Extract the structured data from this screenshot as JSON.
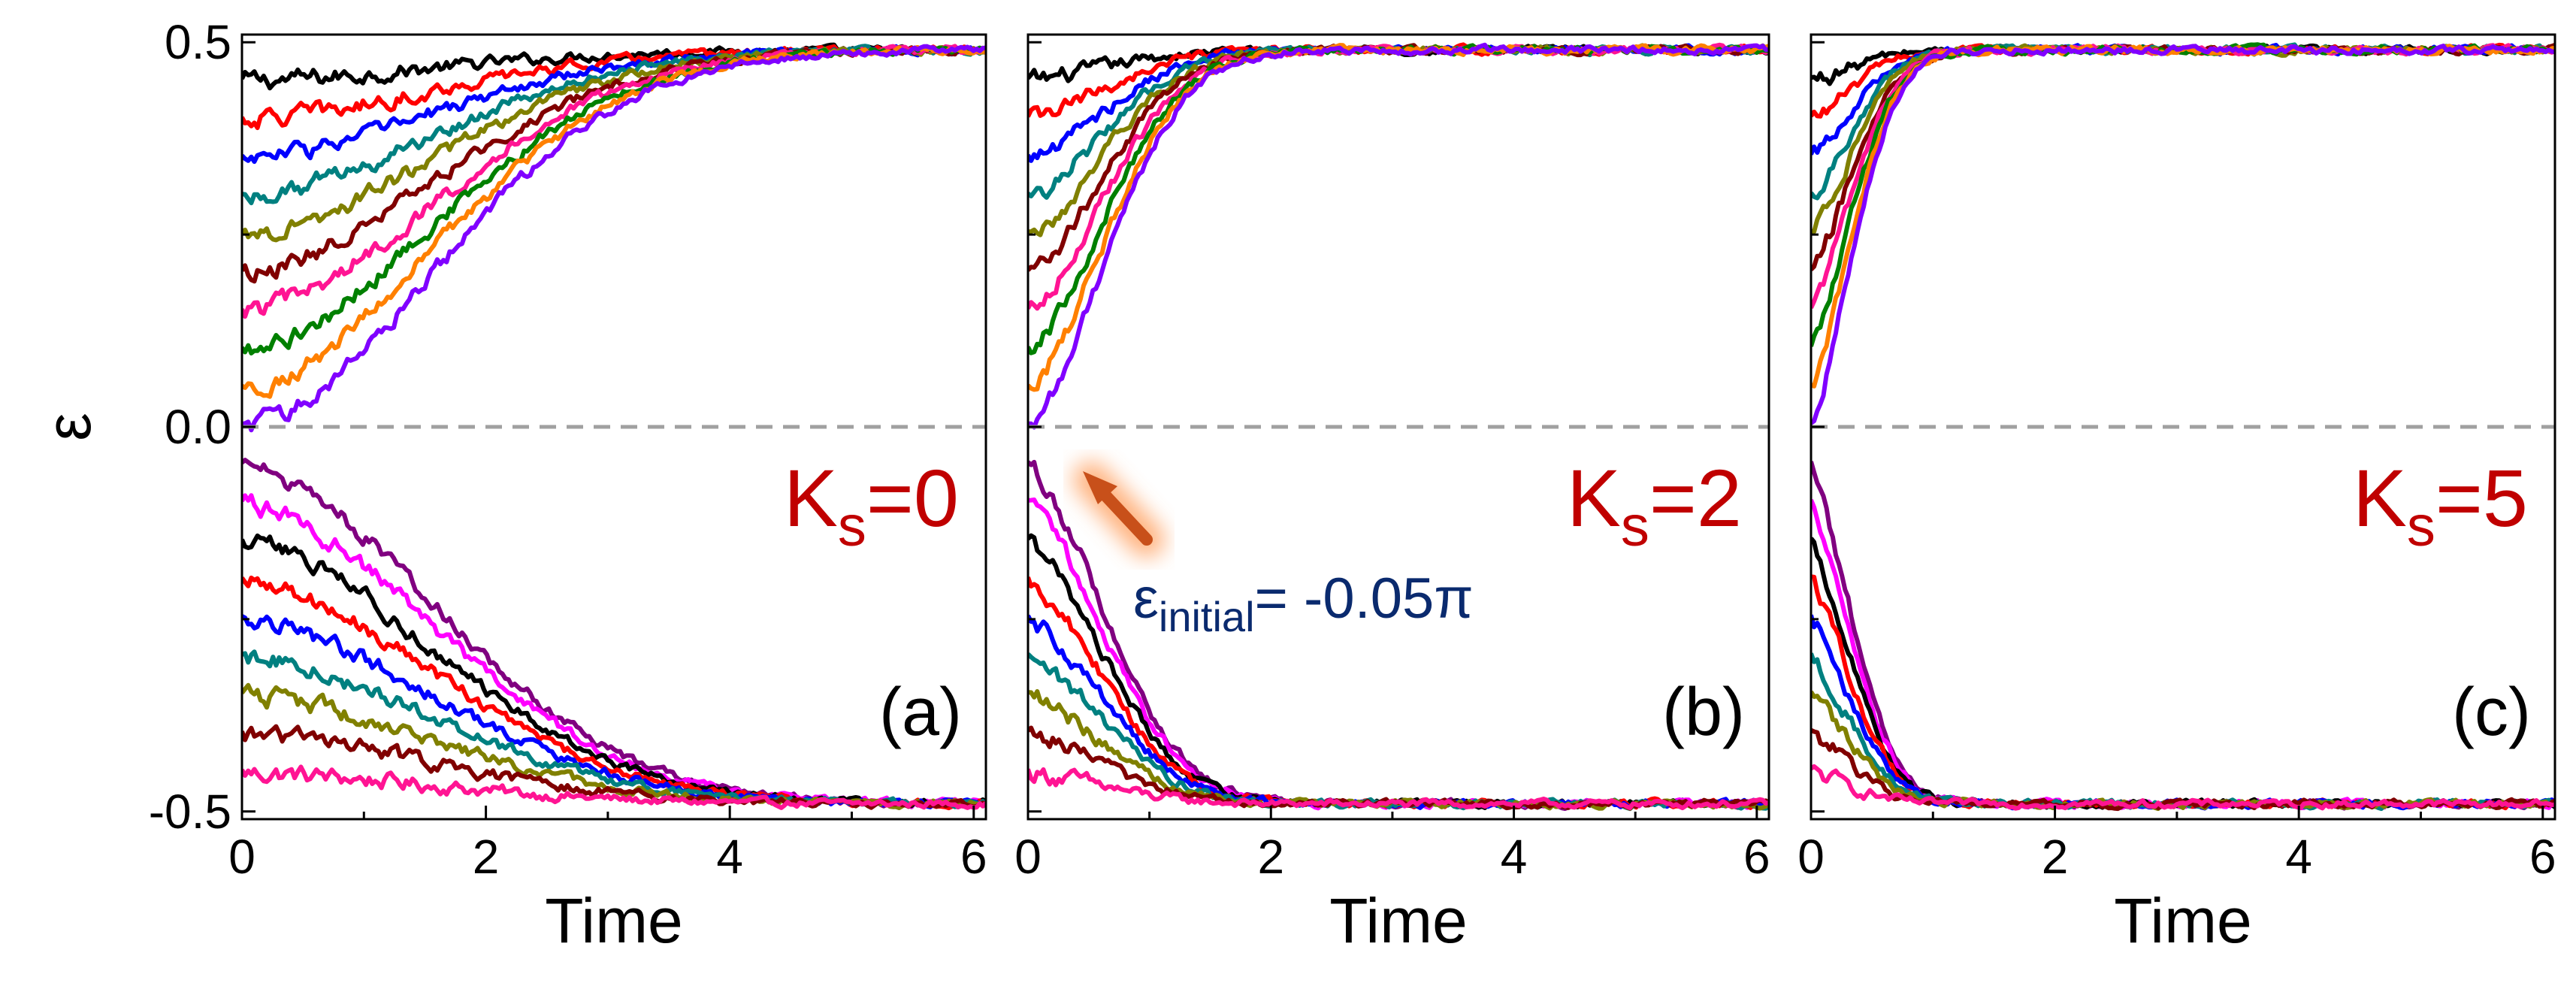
{
  "figure": {
    "ylabel": "ε",
    "colors": [
      "#000000",
      "#ff0000",
      "#0000ff",
      "#008080",
      "#808000",
      "#800000",
      "#ff1493",
      "#008000",
      "#ff8000",
      "#8000ff",
      "#800080",
      "#ff00ff"
    ],
    "zero_line_color": "#a0a0a0",
    "panel_label_color": "#c00000"
  },
  "chart_data": [
    {
      "type": "line",
      "panel_label": "(a)",
      "annotation_main": "K",
      "annotation_sub": "s",
      "annotation_rest": "=0",
      "xlabel": "Time",
      "xlim": [
        0,
        6.1
      ],
      "ylim": [
        -0.51,
        0.51
      ],
      "xticks": [
        "0",
        "2",
        "4",
        "6"
      ],
      "yticks": [
        "0.5",
        "0.0",
        "-0.5"
      ],
      "reference_line_y": 0.0,
      "initial_values": [
        0.45,
        0.4,
        0.35,
        0.3,
        0.25,
        0.2,
        0.15,
        0.1,
        0.05,
        0.0,
        -0.05,
        -0.1,
        -0.15,
        -0.2,
        -0.25,
        -0.3,
        -0.35,
        -0.4,
        -0.45
      ],
      "final_value_positive": 0.49,
      "final_value_negative": -0.49,
      "relaxation_rate": 1.1
    },
    {
      "type": "line",
      "panel_label": "(b)",
      "annotation_main": "K",
      "annotation_sub": "s",
      "annotation_rest": "=2",
      "xlabel": "Time",
      "xlim": [
        0,
        6.1
      ],
      "ylim": [
        -0.51,
        0.51
      ],
      "xticks": [
        "0",
        "2",
        "4",
        "6"
      ],
      "yticks": [],
      "reference_line_y": 0.0,
      "initial_values": [
        0.45,
        0.4,
        0.35,
        0.3,
        0.25,
        0.2,
        0.15,
        0.1,
        0.05,
        0.0,
        -0.05,
        -0.1,
        -0.15,
        -0.2,
        -0.25,
        -0.3,
        -0.35,
        -0.4,
        -0.45
      ],
      "final_value_positive": 0.49,
      "final_value_negative": -0.49,
      "relaxation_rate": 1.1,
      "arrow_note_main": "ε",
      "arrow_note_sub": "initial",
      "arrow_note_rest": "= -0.05π",
      "arrow_note_color": "#0a2a6e"
    },
    {
      "type": "line",
      "panel_label": "(c)",
      "annotation_main": "K",
      "annotation_sub": "s",
      "annotation_rest": "=5",
      "xlabel": "Time",
      "xlim": [
        0,
        6.1
      ],
      "ylim": [
        -0.51,
        0.51
      ],
      "xticks": [
        "0",
        "2",
        "4",
        "6"
      ],
      "yticks": [],
      "reference_line_y": 0.0,
      "initial_values": [
        0.45,
        0.4,
        0.35,
        0.3,
        0.25,
        0.2,
        0.15,
        0.1,
        0.05,
        0.0,
        -0.05,
        -0.1,
        -0.15,
        -0.2,
        -0.25,
        -0.3,
        -0.35,
        -0.4,
        -0.45
      ],
      "final_value_positive": 0.49,
      "final_value_negative": -0.49,
      "relaxation_rate": 1.1
    }
  ]
}
